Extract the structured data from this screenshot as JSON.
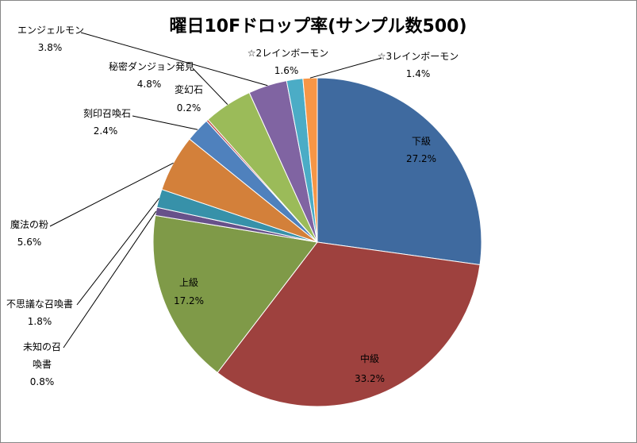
{
  "chart_data": {
    "type": "pie",
    "title": "曜日10Fドロップ率(サンプル数500)",
    "categories": [
      "下級",
      "中級",
      "上級",
      "未知の召喚書",
      "不思議な召喚書",
      "魔法の粉",
      "刻印召喚石",
      "変幻石",
      "秘密ダンジョン発見",
      "エンジェルモン",
      "☆2レインボーモン",
      "☆3レインボーモン"
    ],
    "values": [
      27.2,
      33.2,
      17.2,
      0.8,
      1.8,
      5.6,
      2.4,
      0.2,
      4.8,
      3.8,
      1.6,
      1.4
    ],
    "data_labels": [
      "27.2%",
      "33.2%",
      "17.2%",
      "0.8%",
      "1.8%",
      "5.6%",
      "2.4%",
      "0.2%",
      "4.8%",
      "3.8%",
      "1.6%",
      "1.4%"
    ],
    "colors": [
      "#3F6A9F",
      "#9E413E",
      "#7F9A48",
      "#67518A",
      "#3791A9",
      "#D3803A",
      "#4F81BD",
      "#C0504D",
      "#9BBB59",
      "#8064A2",
      "#4BACC6",
      "#F79646"
    ],
    "legend": false
  }
}
